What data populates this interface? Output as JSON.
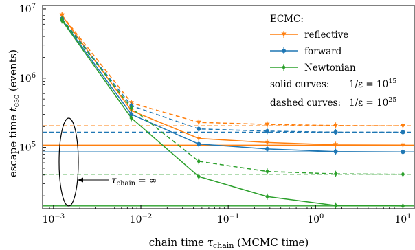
{
  "chart_data": {
    "type": "line",
    "xscale": "log",
    "yscale": "log",
    "xlim": [
      0.00075,
      13.5
    ],
    "ylim": [
      13000,
      11200000
    ],
    "xlabel": "chain time τchain (MCMC time)",
    "xlabel_parts": {
      "pre": "chain time ",
      "sym": "τ",
      "sub": "chain",
      "post": " (MCMC time)"
    },
    "ylabel": "escape time tesc (events)",
    "ylabel_parts": {
      "pre": "escape time ",
      "sym": "t",
      "sub": "esc",
      "post": " (events)"
    },
    "x_ticks": [
      {
        "value": 0.001,
        "base": "10",
        "exp": "−3"
      },
      {
        "value": 0.01,
        "base": "10",
        "exp": "−2"
      },
      {
        "value": 0.1,
        "base": "10",
        "exp": "−1"
      },
      {
        "value": 1,
        "base": "10",
        "exp": "0"
      },
      {
        "value": 10,
        "base": "10",
        "exp": "1"
      }
    ],
    "y_ticks": [
      {
        "value": 100000,
        "base": "10",
        "exp": "5"
      },
      {
        "value": 1000000,
        "base": "10",
        "exp": "6"
      },
      {
        "value": 10000000,
        "base": "10",
        "exp": "7"
      }
    ],
    "x": [
      0.00125,
      0.0078,
      0.046,
      0.28,
      1.7,
      10
    ],
    "legend": {
      "position": "top-right",
      "title": "ECMC:",
      "solid_note": "solid curves:",
      "solid_value": "1/ε = 10",
      "solid_exp": "15",
      "dashed_note": "dashed curves:",
      "dashed_value": "1/ε = 10",
      "dashed_exp": "25"
    },
    "series": [
      {
        "name": "reflective",
        "color": "#ff7f0e",
        "marker": "triangle-down",
        "style": "solid",
        "values": [
          8000000,
          340000,
          135000,
          118000,
          109000,
          108000
        ],
        "asymptote": 108000
      },
      {
        "name": "forward",
        "color": "#1f77b4",
        "marker": "circle",
        "style": "solid",
        "values": [
          7000000,
          300000,
          112000,
          95000,
          87000,
          86000
        ],
        "asymptote": 86000
      },
      {
        "name": "Newtonian",
        "color": "#2ca02c",
        "marker": "diamond",
        "style": "solid",
        "values": [
          6800000,
          265000,
          38000,
          19500,
          14500,
          14300
        ],
        "asymptote": 14300
      },
      {
        "name": "reflective",
        "color": "#ff7f0e",
        "marker": "triangle-down",
        "style": "dashed",
        "values": [
          8100000,
          440000,
          230000,
          215000,
          207000,
          205000
        ],
        "asymptote": 205000
      },
      {
        "name": "forward",
        "color": "#1f77b4",
        "marker": "circle",
        "style": "dashed",
        "values": [
          7200000,
          400000,
          185000,
          172000,
          166000,
          166000
        ],
        "asymptote": 166000
      },
      {
        "name": "Newtonian",
        "color": "#2ca02c",
        "marker": "diamond",
        "style": "dashed",
        "values": [
          7100000,
          370000,
          63000,
          45000,
          41500,
          41000
        ],
        "asymptote": 41000
      }
    ],
    "annotation": {
      "sym": "τ",
      "sub": "chain",
      "text": " = ∞"
    },
    "grid": false
  }
}
